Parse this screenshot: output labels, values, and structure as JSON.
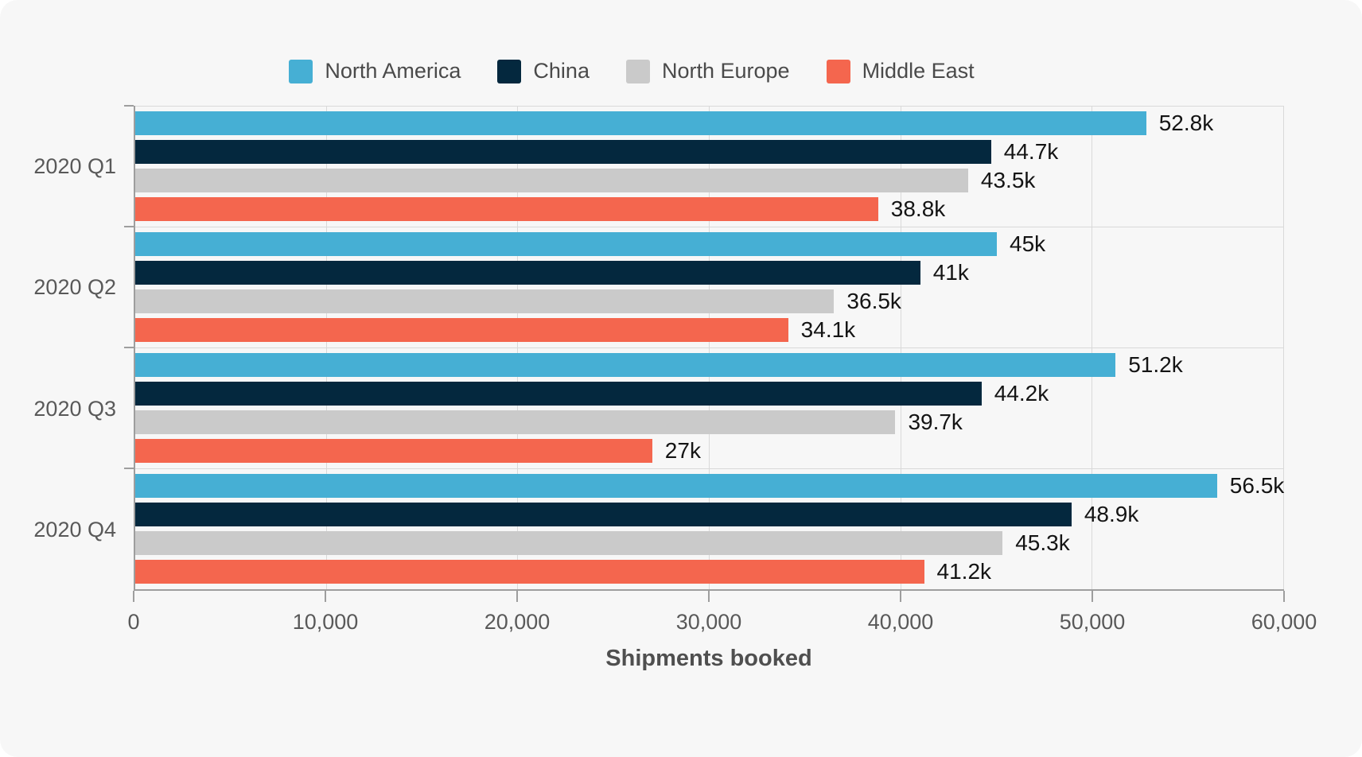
{
  "page": {
    "background": "#ffffff",
    "card_background": "#f7f7f7",
    "gridline_color": "#d9d9d9",
    "axis_color": "#9e9e9e"
  },
  "chart_data": {
    "type": "bar",
    "orientation": "horizontal",
    "title": "",
    "xlabel": "Shipments booked",
    "ylabel": "",
    "grid": true,
    "legend_position": "top",
    "xlim": [
      0,
      60000
    ],
    "x_ticks": [
      {
        "value": 0,
        "label": "0"
      },
      {
        "value": 10000,
        "label": "10,000"
      },
      {
        "value": 20000,
        "label": "20,000"
      },
      {
        "value": 30000,
        "label": "30,000"
      },
      {
        "value": 40000,
        "label": "40,000"
      },
      {
        "value": 50000,
        "label": "50,000"
      },
      {
        "value": 60000,
        "label": "60,000"
      }
    ],
    "categories": [
      "2020 Q1",
      "2020 Q2",
      "2020 Q3",
      "2020 Q4"
    ],
    "series": [
      {
        "name": "North America",
        "color": "#46afd4",
        "values": [
          52800,
          45000,
          51200,
          56500
        ],
        "labels": [
          "52.8k",
          "45k",
          "51.2k",
          "56.5k"
        ]
      },
      {
        "name": "China",
        "color": "#04283e",
        "values": [
          44700,
          41000,
          44200,
          48900
        ],
        "labels": [
          "44.7k",
          "41k",
          "44.2k",
          "48.9k"
        ]
      },
      {
        "name": "North Europe",
        "color": "#cacaca",
        "values": [
          43500,
          36500,
          39700,
          45300
        ],
        "labels": [
          "43.5k",
          "36.5k",
          "39.7k",
          "45.3k"
        ]
      },
      {
        "name": "Middle East",
        "color": "#f4664e",
        "values": [
          38800,
          34100,
          27000,
          41200
        ],
        "labels": [
          "38.8k",
          "34.1k",
          "27k",
          "41.2k"
        ]
      }
    ]
  }
}
